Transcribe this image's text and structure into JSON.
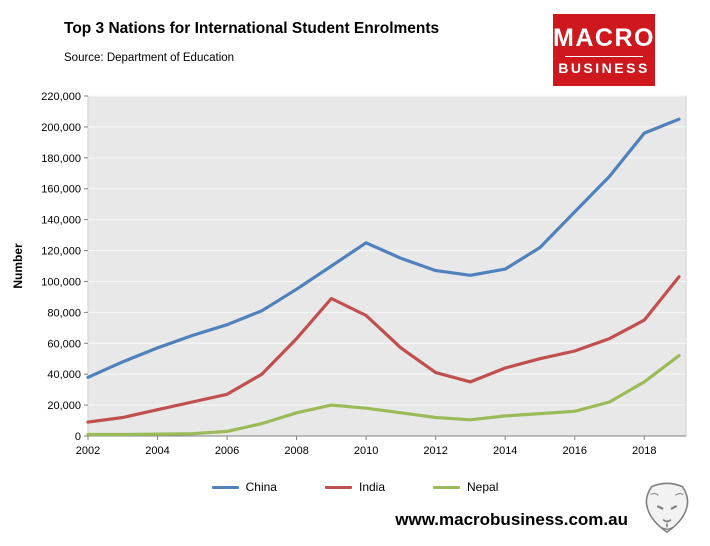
{
  "header": {
    "title": "Top 3 Nations for International Student Enrolments",
    "source": "Source: Department of Education"
  },
  "logo": {
    "line1": "MACRO",
    "line2": "BUSINESS",
    "bg_color": "#ce181e"
  },
  "footer": {
    "website": "www.macrobusiness.com.au"
  },
  "chart_data": {
    "type": "line",
    "title": "Top 3 Nations for International Student Enrolments",
    "subtitle": "Source: Department of Education",
    "ylabel": "Number",
    "xlabel": "",
    "ylim": [
      0,
      220000
    ],
    "ytick_step": 20000,
    "xlim": [
      2002,
      2019.2
    ],
    "xticks": [
      2002,
      2004,
      2006,
      2008,
      2010,
      2012,
      2014,
      2016,
      2018
    ],
    "x": [
      2002,
      2003,
      2004,
      2005,
      2006,
      2007,
      2008,
      2009,
      2010,
      2011,
      2012,
      2013,
      2014,
      2015,
      2016,
      2017,
      2018,
      2019
    ],
    "series": [
      {
        "name": "China",
        "color": "#4F81BD",
        "values": [
          38000,
          48000,
          57000,
          65000,
          72000,
          81000,
          95000,
          110000,
          125000,
          115000,
          107000,
          104000,
          108000,
          122000,
          145000,
          168000,
          196000,
          205000
        ]
      },
      {
        "name": "India",
        "color": "#C0504D",
        "values": [
          9000,
          12000,
          17000,
          22000,
          27000,
          40000,
          63000,
          89000,
          78000,
          57000,
          41000,
          35000,
          44000,
          50000,
          55000,
          63000,
          75000,
          103000
        ]
      },
      {
        "name": "Nepal",
        "color": "#9BBB59",
        "values": [
          1000,
          1000,
          1200,
          1500,
          3000,
          8000,
          15000,
          20000,
          18000,
          15000,
          12000,
          10500,
          13000,
          14500,
          16000,
          22000,
          35000,
          52000
        ]
      }
    ],
    "legend_position": "bottom",
    "grid": true,
    "plot_bg": "#e8e8e8"
  }
}
